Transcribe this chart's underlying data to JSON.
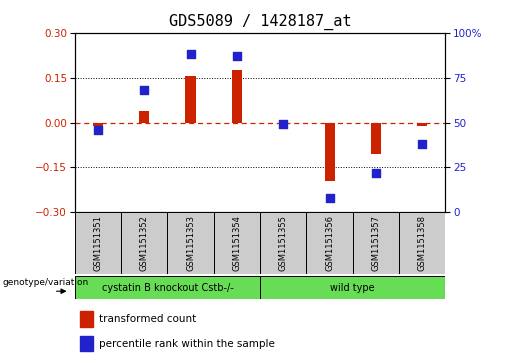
{
  "title": "GDS5089 / 1428187_at",
  "samples": [
    "GSM1151351",
    "GSM1151352",
    "GSM1151353",
    "GSM1151354",
    "GSM1151355",
    "GSM1151356",
    "GSM1151357",
    "GSM1151358"
  ],
  "transformed_count": [
    -0.01,
    0.04,
    0.155,
    0.175,
    -0.005,
    -0.195,
    -0.105,
    -0.01
  ],
  "percentile_rank": [
    46,
    68,
    88,
    87,
    49,
    8,
    22,
    38
  ],
  "group1_indices": [
    0,
    1,
    2,
    3
  ],
  "group2_indices": [
    4,
    5,
    6,
    7
  ],
  "group1_label": "cystatin B knockout Cstb-/-",
  "group2_label": "wild type",
  "group_row_label": "genotype/variation",
  "ylim_left": [
    -0.3,
    0.3
  ],
  "ylim_right": [
    0,
    100
  ],
  "yticks_left": [
    -0.3,
    -0.15,
    0,
    0.15,
    0.3
  ],
  "yticks_right": [
    0,
    25,
    50,
    75,
    100
  ],
  "bar_color": "#CC2200",
  "dot_color": "#2222CC",
  "zero_line_color": "#CC2200",
  "grid_color": "#000000",
  "group_color": "#66DD55",
  "label_box_color": "#CCCCCC",
  "legend_bar_label": "transformed count",
  "legend_dot_label": "percentile rank within the sample",
  "title_fontsize": 11,
  "tick_fontsize": 7.5,
  "sample_fontsize": 6,
  "group_fontsize": 7,
  "legend_fontsize": 7.5
}
